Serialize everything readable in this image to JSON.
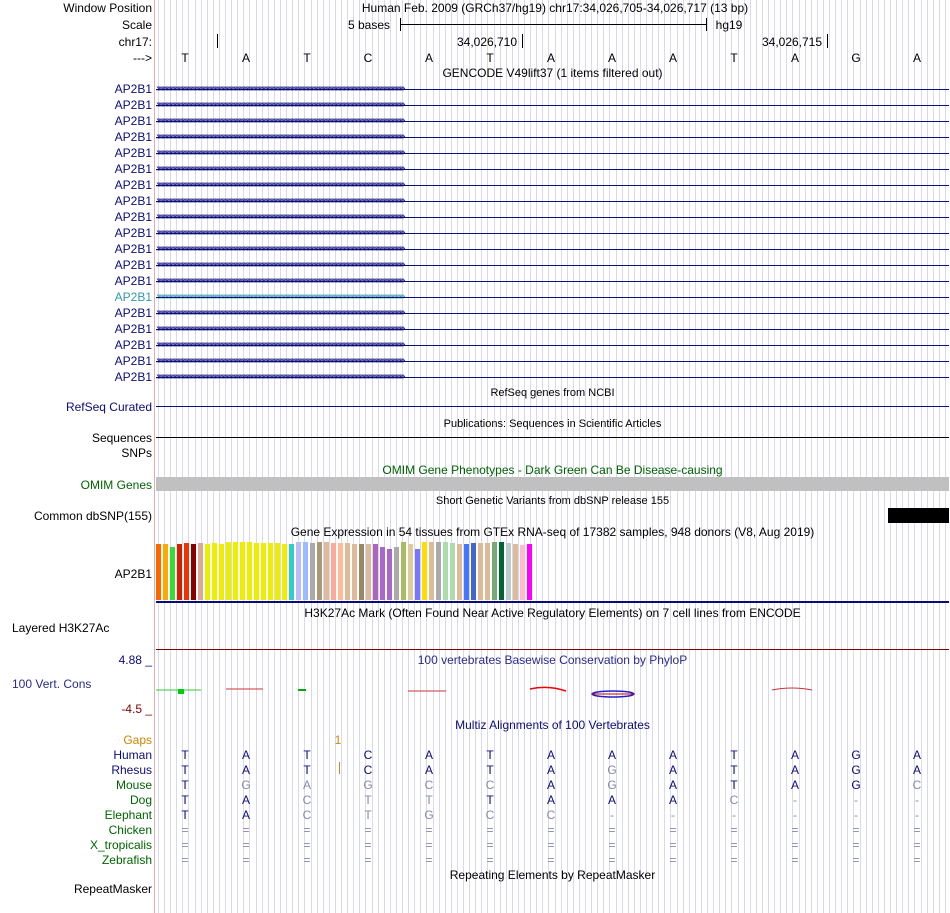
{
  "header": {
    "window_position_label": "Window Position",
    "position_text": "Human Feb. 2009 (GRCh37/hg19)   chr17:34,026,705-34,026,717 (13 bp)",
    "scale_label": "Scale",
    "scale_bases": "5 bases",
    "scale_assembly": "hg19",
    "chrom_label": "chr17:",
    "coord_1": "34,026,710",
    "coord_2": "34,026,715",
    "strand_label": "--->",
    "bases": [
      "T",
      "A",
      "T",
      "C",
      "A",
      "T",
      "A",
      "A",
      "A",
      "T",
      "A",
      "G",
      "A"
    ]
  },
  "gencode": {
    "title": "GENCODE V49lift37 (1 items filtered out)",
    "genes": [
      "AP2B1",
      "AP2B1",
      "AP2B1",
      "AP2B1",
      "AP2B1",
      "AP2B1",
      "AP2B1",
      "AP2B1",
      "AP2B1",
      "AP2B1",
      "AP2B1",
      "AP2B1",
      "AP2B1",
      "AP2B1",
      "AP2B1",
      "AP2B1",
      "AP2B1",
      "AP2B1",
      "AP2B1"
    ],
    "highlighted_index": 13,
    "arrows": "››››››››››››››››››››››››››››››››››››››››››››››››››››››››››››››››››››››››››››››››››››››››››››››››››››››››››››››››››››››››››››››››››››››››››››››››››››››››››››››››››››››››››››››››››››››››››"
  },
  "refseq": {
    "title": "RefSeq genes from NCBI",
    "label": "RefSeq Curated"
  },
  "publications": {
    "title": "Publications: Sequences in Scientific Articles",
    "label": "Sequences"
  },
  "snps": {
    "label": "SNPs"
  },
  "omim": {
    "title": "OMIM Gene Phenotypes - Dark Green Can Be Disease-causing",
    "label": "OMIM Genes"
  },
  "dbsnp": {
    "title": "Short Genetic Variants from dbSNP release 155",
    "label": "Common dbSNP(155)"
  },
  "gtex": {
    "title": "Gene Expression in 54 tissues from GTEx RNA-seq of 17382 samples, 948 donors (V8, Aug 2019)",
    "label": "AP2B1",
    "bars": [
      {
        "v": 0.96,
        "c": "#ff6600"
      },
      {
        "v": 0.96,
        "c": "#ffaa00"
      },
      {
        "v": 0.92,
        "c": "#33dd33"
      },
      {
        "v": 0.96,
        "c": "#cc2200"
      },
      {
        "v": 0.98,
        "c": "#ee3300"
      },
      {
        "v": 0.96,
        "c": "#880000"
      },
      {
        "v": 0.98,
        "c": "#ddaa99"
      },
      {
        "v": 0.96,
        "c": "#eeee00"
      },
      {
        "v": 0.98,
        "c": "#eeee00"
      },
      {
        "v": 0.96,
        "c": "#eeee00"
      },
      {
        "v": 1.0,
        "c": "#eeee00"
      },
      {
        "v": 1.0,
        "c": "#eeee00"
      },
      {
        "v": 1.0,
        "c": "#eeee00"
      },
      {
        "v": 1.0,
        "c": "#eeee00"
      },
      {
        "v": 0.98,
        "c": "#eeee00"
      },
      {
        "v": 0.98,
        "c": "#eeee00"
      },
      {
        "v": 0.98,
        "c": "#eeee00"
      },
      {
        "v": 0.98,
        "c": "#eeee00"
      },
      {
        "v": 0.96,
        "c": "#eeee00"
      },
      {
        "v": 0.96,
        "c": "#33cccc"
      },
      {
        "v": 1.0,
        "c": "#bbbbff"
      },
      {
        "v": 1.0,
        "c": "#99bbff"
      },
      {
        "v": 0.98,
        "c": "#aaaaaa"
      },
      {
        "v": 1.0,
        "c": "#aa9977"
      },
      {
        "v": 1.0,
        "c": "#ddbb99"
      },
      {
        "v": 0.98,
        "c": "#ffaa99"
      },
      {
        "v": 0.98,
        "c": "#ffbb99"
      },
      {
        "v": 0.98,
        "c": "#ddbb99"
      },
      {
        "v": 0.96,
        "c": "#ddbb99"
      },
      {
        "v": 0.96,
        "c": "#998866"
      },
      {
        "v": 0.96,
        "c": "#ddbb99"
      },
      {
        "v": 0.96,
        "c": "#aa66bb"
      },
      {
        "v": 0.92,
        "c": "#aa66cc"
      },
      {
        "v": 0.88,
        "c": "#aa66cc"
      },
      {
        "v": 0.92,
        "c": "#aaaaaa"
      },
      {
        "v": 1.0,
        "c": "#aabb66"
      },
      {
        "v": 0.96,
        "c": "#ddcc99"
      },
      {
        "v": 0.88,
        "c": "#7777ff"
      },
      {
        "v": 1.0,
        "c": "#ffdd00"
      },
      {
        "v": 1.0,
        "c": "#ddbb99"
      },
      {
        "v": 1.0,
        "c": "#aaaaaa"
      },
      {
        "v": 1.0,
        "c": "#aaddaa"
      },
      {
        "v": 0.98,
        "c": "#aaddaa"
      },
      {
        "v": 0.96,
        "c": "#ddbb99"
      },
      {
        "v": 0.96,
        "c": "#4477ff"
      },
      {
        "v": 0.98,
        "c": "#4466cc"
      },
      {
        "v": 0.98,
        "c": "#ddbb99"
      },
      {
        "v": 0.98,
        "c": "#ddbb99"
      },
      {
        "v": 1.0,
        "c": "#77aa77"
      },
      {
        "v": 1.0,
        "c": "#006633"
      },
      {
        "v": 0.98,
        "c": "#bbcccc"
      },
      {
        "v": 0.96,
        "c": "#ddbb99"
      },
      {
        "v": 0.94,
        "c": "#ffbbcc"
      },
      {
        "v": 0.96,
        "c": "#ff00ff"
      }
    ]
  },
  "h3k27ac": {
    "title": "H3K27Ac Mark (Often Found Near Active Regulatory Elements) on 7 cell lines from ENCODE",
    "label": "Layered H3K27Ac"
  },
  "phylop": {
    "title": "100 vertebrates Basewise Conservation by PhyloP",
    "label": "100 Vert. Cons",
    "max": "4.88 _",
    "min": "-4.5 _"
  },
  "multiz": {
    "title": "Multiz Alignments of 100 Vertebrates",
    "gaps_label": "Gaps",
    "gaps_value": "1",
    "species": [
      {
        "name": "Human",
        "color": "#0c0c78",
        "bases": [
          "T",
          "A",
          "T",
          "C",
          "A",
          "T",
          "A",
          "A",
          "A",
          "T",
          "A",
          "G",
          "A"
        ]
      },
      {
        "name": "Rhesus",
        "color": "#0c0c78",
        "bases": [
          "T",
          "A",
          "T",
          "C",
          "A",
          "T",
          "A",
          "G",
          "A",
          "T",
          "A",
          "G",
          "A"
        ]
      },
      {
        "name": "Mouse",
        "color": "#006400",
        "bases": [
          "T",
          "G",
          "A",
          "G",
          "C",
          "C",
          "A",
          "G",
          "A",
          "T",
          "A",
          "G",
          "C"
        ]
      },
      {
        "name": "Dog",
        "color": "#006400",
        "bases": [
          "T",
          "A",
          "C",
          "T",
          "T",
          "T",
          "A",
          "A",
          "A",
          "C",
          "-",
          "-",
          "-"
        ]
      },
      {
        "name": "Elephant",
        "color": "#006400",
        "bases": [
          "T",
          "A",
          "C",
          "T",
          "G",
          "C",
          "C",
          "-",
          "-",
          "-",
          "-",
          "-",
          "-"
        ]
      },
      {
        "name": "Chicken",
        "color": "#006400",
        "bases": [
          "=",
          "=",
          "=",
          "=",
          "=",
          "=",
          "=",
          "=",
          "=",
          "=",
          "=",
          "=",
          "="
        ]
      },
      {
        "name": "X_tropicalis",
        "color": "#006400",
        "bases": [
          "=",
          "=",
          "=",
          "=",
          "=",
          "=",
          "=",
          "=",
          "=",
          "=",
          "=",
          "=",
          "="
        ]
      },
      {
        "name": "Zebrafish",
        "color": "#006400",
        "bases": [
          "=",
          "=",
          "=",
          "=",
          "=",
          "=",
          "=",
          "=",
          "=",
          "=",
          "=",
          "=",
          "="
        ]
      }
    ]
  },
  "repeatmasker": {
    "title": "Repeating Elements by RepeatMasker",
    "label": "RepeatMasker"
  },
  "colors": {
    "navy": "#0c0c78",
    "darkgreen": "#006400",
    "maroon": "#800000",
    "orange": "#cc8800",
    "teal": "#3399aa"
  }
}
